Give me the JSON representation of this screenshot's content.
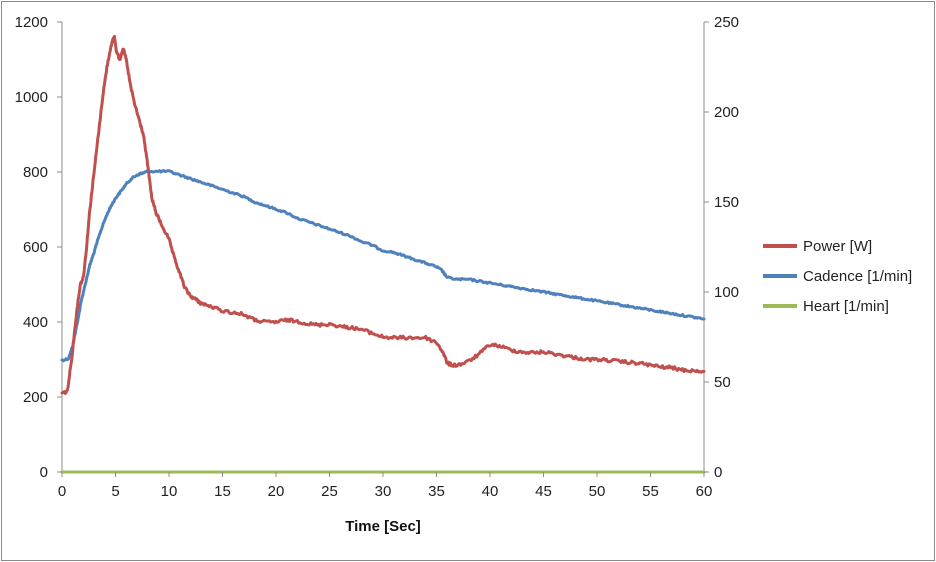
{
  "chart_data": {
    "type": "line",
    "title": "",
    "xlabel": "Time [Sec]",
    "ylabel": "",
    "y2label": "",
    "xlim": [
      0,
      60
    ],
    "ylim": [
      0,
      1200
    ],
    "y2lim": [
      0,
      250
    ],
    "x_ticks": [
      0,
      5,
      10,
      15,
      20,
      25,
      30,
      35,
      40,
      45,
      50,
      55,
      60
    ],
    "y_ticks": [
      0,
      200,
      400,
      600,
      800,
      1000,
      1200
    ],
    "y2_ticks": [
      0,
      50,
      100,
      150,
      200,
      250
    ],
    "grid": false,
    "legend_position": "right",
    "series": [
      {
        "name": "Power [W]",
        "axis": "left",
        "color": "#c0504d",
        "x": [
          0,
          0.5,
          0.9,
          1.3,
          1.7,
          2.0,
          2.3,
          2.6,
          3.0,
          3.4,
          3.8,
          4.2,
          4.6,
          4.9,
          5.1,
          5.4,
          5.7,
          6.0,
          6.4,
          6.8,
          7.2,
          7.6,
          8.0,
          8.4,
          8.8,
          9.3,
          10.0,
          10.5,
          11.0,
          11.5,
          12.0,
          12.5,
          13.0,
          14.0,
          15.0,
          16.0,
          17.0,
          18.0,
          19.0,
          20.0,
          21.0,
          22.0,
          23.0,
          24.0,
          25.0,
          26.0,
          27.0,
          28.0,
          29.0,
          30.0,
          31.0,
          32.0,
          33.0,
          34.0,
          35.0,
          35.6,
          36.0,
          36.5,
          37.0,
          38.0,
          39.0,
          40.0,
          41.0,
          42.0,
          43.0,
          44.0,
          45.0,
          46.0,
          47.0,
          48.0,
          49.0,
          50.0,
          51.0,
          52.0,
          53.0,
          54.0,
          55.0,
          56.0,
          57.0,
          58.0,
          59.0,
          60.0
        ],
        "values": [
          210,
          215,
          300,
          410,
          500,
          520,
          600,
          700,
          800,
          900,
          1000,
          1080,
          1140,
          1160,
          1120,
          1100,
          1130,
          1100,
          1030,
          980,
          940,
          900,
          820,
          730,
          690,
          660,
          620,
          570,
          530,
          490,
          470,
          460,
          450,
          440,
          430,
          425,
          420,
          405,
          400,
          400,
          405,
          402,
          395,
          392,
          395,
          388,
          385,
          380,
          370,
          360,
          358,
          358,
          358,
          358,
          345,
          320,
          290,
          285,
          285,
          295,
          315,
          340,
          335,
          325,
          320,
          318,
          320,
          315,
          310,
          305,
          300,
          300,
          298,
          295,
          292,
          290,
          285,
          280,
          278,
          272,
          270,
          268
        ]
      },
      {
        "name": "Cadence [1/min]",
        "axis": "right",
        "color": "#4f81bd",
        "x": [
          0,
          0.6,
          1.0,
          1.4,
          1.8,
          2.2,
          2.6,
          3.0,
          3.4,
          3.8,
          4.2,
          4.6,
          5.0,
          5.5,
          6.0,
          6.5,
          7.0,
          7.5,
          8.0,
          9.0,
          10.0,
          11.0,
          12.0,
          13.0,
          14.0,
          15.0,
          16.0,
          17.0,
          18.0,
          19.0,
          20.0,
          21.0,
          22.0,
          23.0,
          24.0,
          25.0,
          26.0,
          27.0,
          28.0,
          29.0,
          30.0,
          31.0,
          32.0,
          33.0,
          34.0,
          35.0,
          35.5,
          36.0,
          37.0,
          38.0,
          39.0,
          40.0,
          41.0,
          42.0,
          43.0,
          44.0,
          45.0,
          46.0,
          47.0,
          48.0,
          49.0,
          50.0,
          51.0,
          52.0,
          53.0,
          54.0,
          55.0,
          56.0,
          57.0,
          58.0,
          59.0,
          60.0
        ],
        "values": [
          62,
          63,
          70,
          82,
          95,
          105,
          115,
          122,
          130,
          137,
          143,
          148,
          152,
          156,
          160,
          163,
          165,
          166,
          167,
          167,
          167,
          165,
          163,
          161,
          159,
          157,
          155,
          153,
          150,
          148,
          146,
          144,
          141,
          139,
          137,
          135,
          133,
          131,
          128,
          126,
          123,
          122,
          120,
          118,
          116,
          114,
          112,
          108,
          107,
          107,
          106,
          105,
          104,
          103,
          102,
          101,
          100,
          99,
          98,
          97,
          96,
          95,
          94,
          93,
          92,
          91,
          90,
          89,
          88,
          87,
          86,
          85
        ]
      },
      {
        "name": "Heart [1/min]",
        "axis": "right",
        "color": "#9bbb59",
        "x": [
          0,
          60
        ],
        "values": [
          0,
          0
        ]
      }
    ]
  }
}
